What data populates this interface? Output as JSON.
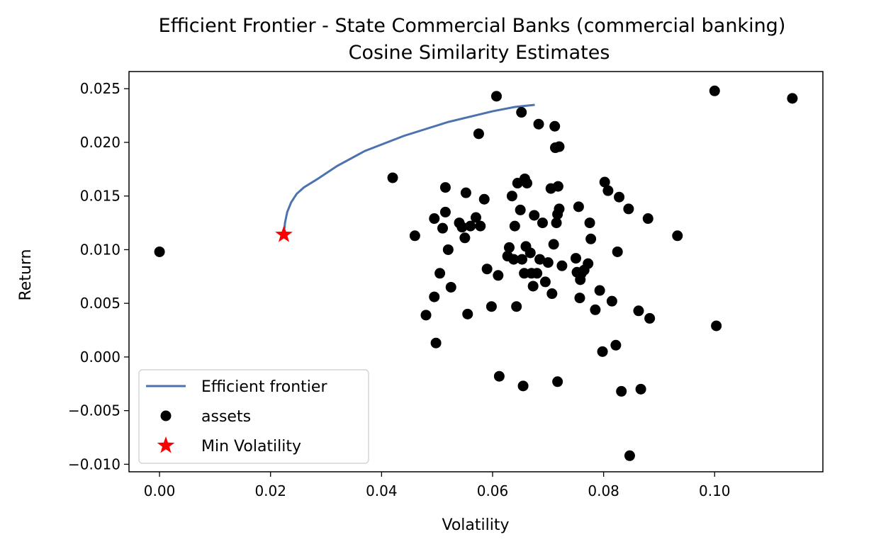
{
  "chart_data": {
    "type": "scatter",
    "title": "Efficient Frontier - State Commercial Banks (commercial banking)",
    "subtitle": "Cosine Similarity Estimates",
    "xlabel": "Volatility",
    "ylabel": "Return",
    "xlim": [
      -0.0055,
      0.1195
    ],
    "ylim": [
      -0.0107,
      0.0266
    ],
    "x_ticks": [
      0.0,
      0.02,
      0.04,
      0.06,
      0.08,
      0.1
    ],
    "x_tick_labels": [
      "0.00",
      "0.02",
      "0.04",
      "0.06",
      "0.08",
      "0.10"
    ],
    "y_ticks": [
      -0.01,
      -0.005,
      0.0,
      0.005,
      0.01,
      0.015,
      0.02,
      0.025
    ],
    "y_tick_labels": [
      "−0.010",
      "−0.005",
      "0.000",
      "0.005",
      "0.010",
      "0.015",
      "0.020",
      "0.025"
    ],
    "grid": false,
    "legend": {
      "placement": "lower-left",
      "entries": [
        "Efficient frontier",
        "assets",
        "Min Volatility"
      ]
    },
    "colors": {
      "frontier": "#4c72b0",
      "assets": "#000000",
      "min_volatility": "#ff0000"
    },
    "frontier": {
      "name": "Efficient frontier",
      "x": [
        0.0224,
        0.0226,
        0.023,
        0.0237,
        0.0247,
        0.026,
        0.0285,
        0.032,
        0.037,
        0.044,
        0.052,
        0.06,
        0.064,
        0.0676
      ],
      "y": [
        0.0115,
        0.0125,
        0.0135,
        0.0144,
        0.0152,
        0.0158,
        0.0166,
        0.0178,
        0.0192,
        0.0206,
        0.0219,
        0.0229,
        0.0233,
        0.0235
      ]
    },
    "assets": {
      "name": "assets",
      "x": [
        0.0,
        0.042,
        0.046,
        0.048,
        0.0495,
        0.0495,
        0.0498,
        0.0505,
        0.051,
        0.0515,
        0.0515,
        0.052,
        0.0525,
        0.054,
        0.0545,
        0.055,
        0.0552,
        0.0555,
        0.056,
        0.057,
        0.0575,
        0.0578,
        0.0585,
        0.059,
        0.0598,
        0.0607,
        0.061,
        0.0612,
        0.0627,
        0.063,
        0.0635,
        0.0638,
        0.064,
        0.0643,
        0.0645,
        0.065,
        0.0652,
        0.0653,
        0.0655,
        0.0657,
        0.0658,
        0.066,
        0.0662,
        0.0668,
        0.067,
        0.0673,
        0.0675,
        0.068,
        0.0683,
        0.0685,
        0.069,
        0.0695,
        0.07,
        0.0705,
        0.0707,
        0.071,
        0.0712,
        0.0713,
        0.0715,
        0.0717,
        0.0717,
        0.0718,
        0.072,
        0.072,
        0.0725,
        0.075,
        0.0752,
        0.0755,
        0.0757,
        0.0758,
        0.076,
        0.0765,
        0.0772,
        0.0775,
        0.0777,
        0.0785,
        0.0793,
        0.0798,
        0.0802,
        0.0808,
        0.0815,
        0.0822,
        0.0825,
        0.0828,
        0.0832,
        0.0845,
        0.0847,
        0.0863,
        0.0867,
        0.088,
        0.0883,
        0.0933,
        0.1,
        0.1003,
        0.114
      ],
      "y": [
        0.0098,
        0.0167,
        0.0113,
        0.0039,
        0.0056,
        0.0129,
        0.0013,
        0.0078,
        0.012,
        0.0158,
        0.0135,
        0.01,
        0.0065,
        0.0125,
        0.0121,
        0.0111,
        0.0153,
        0.004,
        0.0122,
        0.013,
        0.0208,
        0.0122,
        0.0147,
        0.0082,
        0.0047,
        0.0243,
        0.0076,
        -0.0018,
        0.0094,
        0.0102,
        0.015,
        0.0091,
        0.0122,
        0.0047,
        0.0162,
        0.0137,
        0.0228,
        0.0091,
        -0.0027,
        0.0078,
        0.0166,
        0.0103,
        0.0162,
        0.0097,
        0.0078,
        0.0066,
        0.0132,
        0.0078,
        0.0217,
        0.0091,
        0.0125,
        0.007,
        0.0088,
        0.0157,
        0.0059,
        0.0105,
        0.0215,
        0.0195,
        0.0125,
        0.0133,
        -0.0023,
        0.0159,
        0.0196,
        0.0138,
        0.0085,
        0.0092,
        0.0079,
        0.014,
        0.0055,
        0.0072,
        0.0078,
        0.0081,
        0.0087,
        0.0125,
        0.011,
        0.0044,
        0.0062,
        0.0005,
        0.0163,
        0.0155,
        0.0052,
        0.0011,
        0.0098,
        0.0149,
        -0.0032,
        0.0138,
        -0.0092,
        0.0043,
        -0.003,
        0.0129,
        0.0036,
        0.0113,
        0.0248,
        0.0029,
        0.0241
      ]
    },
    "min_volatility": {
      "name": "Min Volatility",
      "x": 0.0224,
      "y": 0.0114
    }
  }
}
